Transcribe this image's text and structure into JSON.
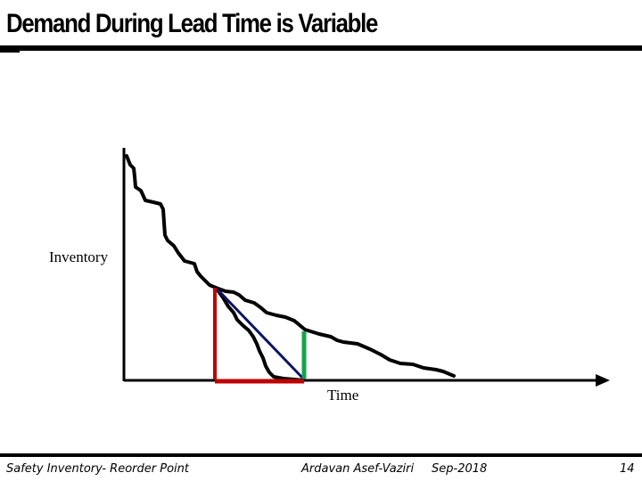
{
  "slide": {
    "title": "Demand During Lead Time is Variable"
  },
  "diagram": {
    "y_axis_label": "Inventory",
    "x_axis_label": "Time"
  },
  "footer": {
    "left": "Safety Inventory- Reorder Point",
    "center": "Ardavan Asef-Vaziri",
    "date": "Sep-2018",
    "page_number": "14"
  },
  "colors": {
    "axis": "#000000",
    "demand_curve": "#000000",
    "average_line": "#0b1464",
    "reorder_marker": "#c00000",
    "lead_time_marker": "#c00000",
    "shortfall_marker": "#17a34a"
  }
}
